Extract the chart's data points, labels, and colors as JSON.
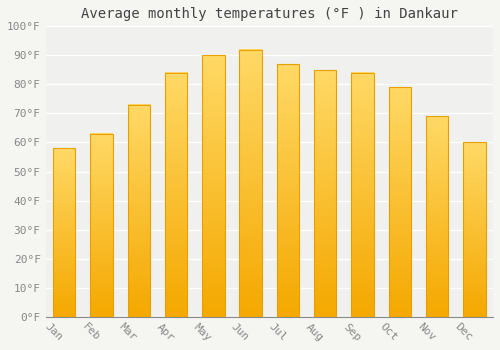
{
  "title": "Average monthly temperatures (°F ) in Dankaur",
  "months": [
    "Jan",
    "Feb",
    "Mar",
    "Apr",
    "May",
    "Jun",
    "Jul",
    "Aug",
    "Sep",
    "Oct",
    "Nov",
    "Dec"
  ],
  "values": [
    58,
    63,
    73,
    84,
    90,
    92,
    87,
    85,
    84,
    79,
    69,
    60
  ],
  "bar_color_bottom": "#F5A800",
  "bar_color_top": "#FFD966",
  "bar_edge_color": "#E8A000",
  "ylim": [
    0,
    100
  ],
  "yticks": [
    0,
    10,
    20,
    30,
    40,
    50,
    60,
    70,
    80,
    90,
    100
  ],
  "ytick_labels": [
    "0°F",
    "10°F",
    "20°F",
    "30°F",
    "40°F",
    "50°F",
    "60°F",
    "70°F",
    "80°F",
    "90°F",
    "100°F"
  ],
  "background_color": "#f5f5f2",
  "plot_bg_color": "#f0f0ee",
  "grid_color": "#ffffff",
  "title_fontsize": 10,
  "tick_fontsize": 8,
  "font_family": "monospace",
  "bar_width": 0.6,
  "xlabel_rotation": -45
}
